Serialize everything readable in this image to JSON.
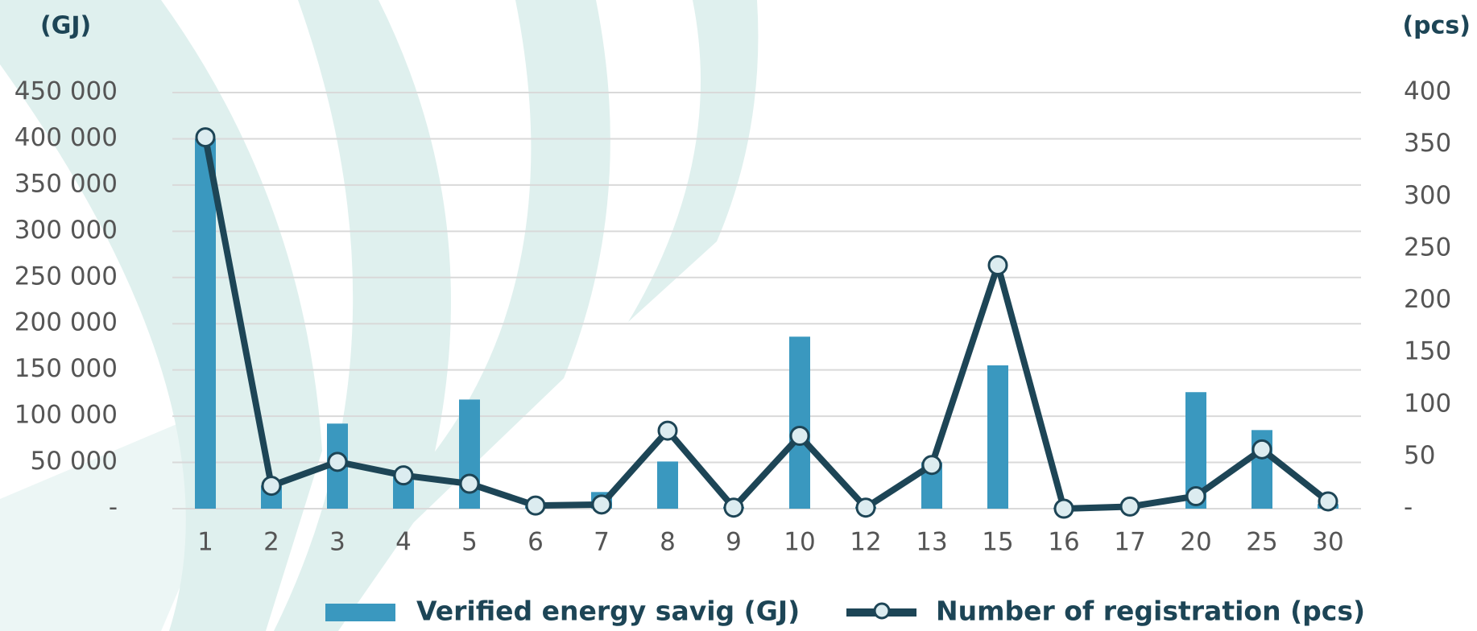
{
  "chart_data": {
    "type": "bar-line",
    "y_title": "(GJ)",
    "y2_title": "(pcs)",
    "categories": [
      "1",
      "2",
      "3",
      "4",
      "5",
      "6",
      "7",
      "8",
      "9",
      "10",
      "12",
      "13",
      "15",
      "16",
      "17",
      "20",
      "25",
      "30"
    ],
    "series": [
      {
        "name": "Verified energy savig (GJ)",
        "type": "bar",
        "color": "#3a98bf",
        "values": [
          400000,
          25000,
          92000,
          35000,
          118000,
          3000,
          18000,
          51000,
          2000,
          186000,
          2000,
          50000,
          155000,
          1000,
          3000,
          126000,
          85000,
          5000
        ]
      },
      {
        "name": "Number of registration (pcs)",
        "type": "line",
        "axis": "y2",
        "color": "#1d4556",
        "values": [
          357,
          22,
          45,
          32,
          24,
          3,
          4,
          75,
          1,
          70,
          1,
          42,
          234,
          0,
          2,
          12,
          57,
          7
        ]
      }
    ],
    "ylim": [
      0,
      450000
    ],
    "yticks": [
      {
        "value": 0,
        "label": "-"
      },
      {
        "value": 50000,
        "label": "50 000"
      },
      {
        "value": 100000,
        "label": "100 000"
      },
      {
        "value": 150000,
        "label": "150 000"
      },
      {
        "value": 200000,
        "label": "200 000"
      },
      {
        "value": 250000,
        "label": "250 000"
      },
      {
        "value": 300000,
        "label": "300 000"
      },
      {
        "value": 350000,
        "label": "350 000"
      },
      {
        "value": 400000,
        "label": "400 000"
      },
      {
        "value": 450000,
        "label": "450 000"
      }
    ],
    "y2lim": [
      0,
      400
    ],
    "y2ticks": [
      {
        "value": 0,
        "label": "-"
      },
      50,
      100,
      150,
      200,
      250,
      300,
      350,
      400
    ],
    "grid": true
  }
}
